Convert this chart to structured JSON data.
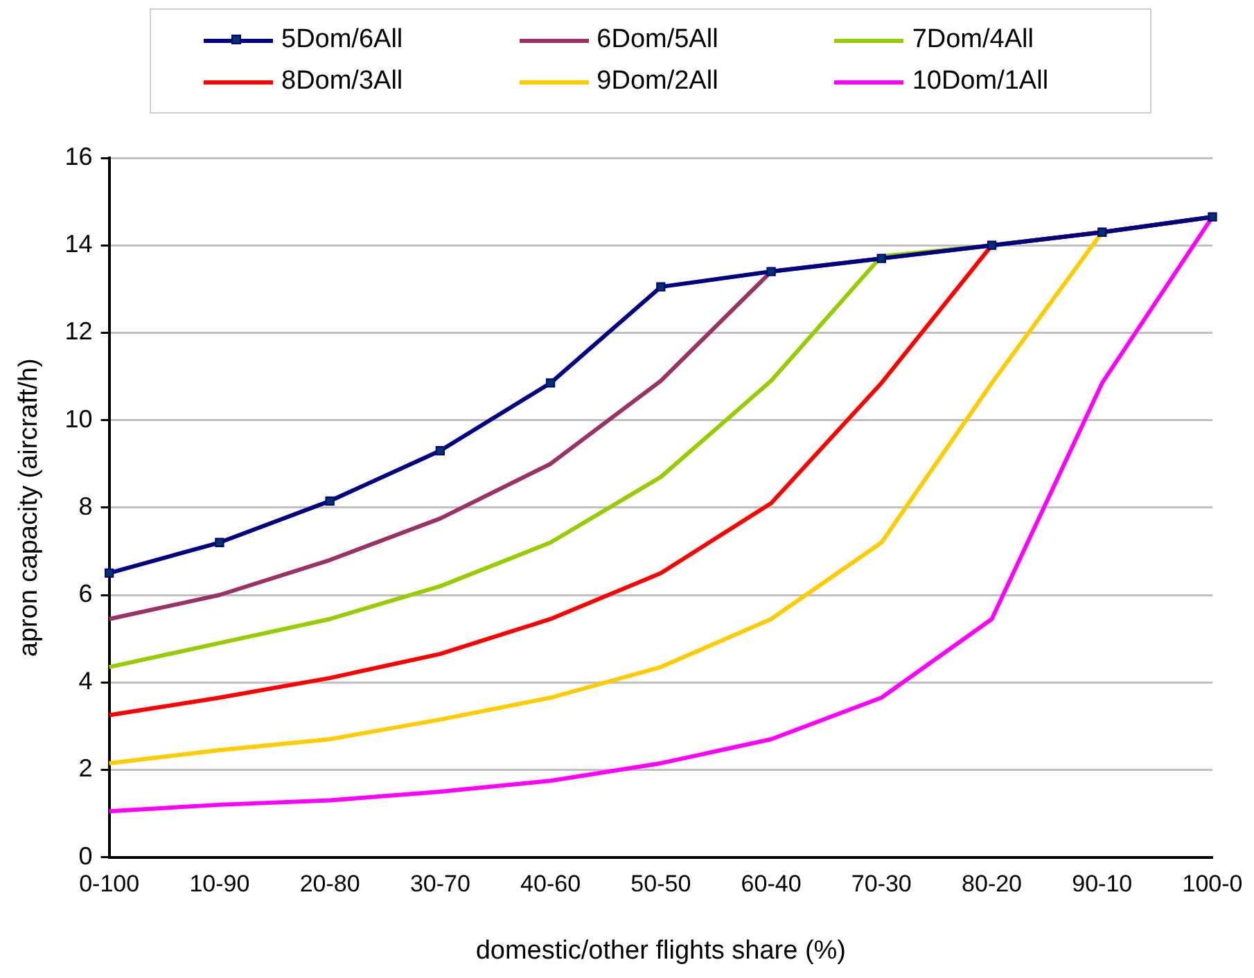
{
  "chart_data": {
    "type": "line",
    "xlabel": "domestic/other flights share (%)",
    "ylabel": "apron capacity (aircraft/h)",
    "categories": [
      "0-100",
      "10-90",
      "20-80",
      "30-70",
      "40-60",
      "50-50",
      "60-40",
      "70-30",
      "80-20",
      "90-10",
      "100-0"
    ],
    "ylim": [
      0,
      16
    ],
    "yticks": [
      0,
      2,
      4,
      6,
      8,
      10,
      12,
      14,
      16
    ],
    "grid": "y",
    "legend": "top",
    "line_style": "solid",
    "series": [
      {
        "name": "5Dom/6All",
        "color": "#000080",
        "marker": "square",
        "values": [
          6.5,
          7.2,
          8.15,
          9.3,
          10.85,
          13.05,
          13.4,
          13.7,
          14.0,
          14.3,
          14.65
        ]
      },
      {
        "name": "6Dom/5All",
        "color": "#993366",
        "marker": "none",
        "values": [
          5.45,
          6.0,
          6.8,
          7.75,
          9.0,
          10.9,
          13.4,
          13.7,
          14.0,
          14.3,
          14.65
        ]
      },
      {
        "name": "7Dom/4All",
        "color": "#99cc00",
        "marker": "none",
        "values": [
          4.35,
          4.9,
          5.45,
          6.2,
          7.2,
          8.7,
          10.9,
          13.75,
          14.0,
          14.3,
          14.65
        ]
      },
      {
        "name": "8Dom/3All",
        "color": "#ff0000",
        "marker": "none",
        "values": [
          3.25,
          3.65,
          4.1,
          4.65,
          5.45,
          6.5,
          8.1,
          10.85,
          14.0,
          14.3,
          14.65
        ]
      },
      {
        "name": "9Dom/2All",
        "color": "#ffcc00",
        "marker": "none",
        "values": [
          2.15,
          2.45,
          2.7,
          3.15,
          3.65,
          4.35,
          5.45,
          7.2,
          10.85,
          14.3,
          14.65
        ]
      },
      {
        "name": "10Dom/1All",
        "color": "#ff00ff",
        "marker": "none",
        "values": [
          1.05,
          1.2,
          1.3,
          1.5,
          1.75,
          2.15,
          2.7,
          3.65,
          5.45,
          10.85,
          14.65
        ]
      }
    ]
  }
}
